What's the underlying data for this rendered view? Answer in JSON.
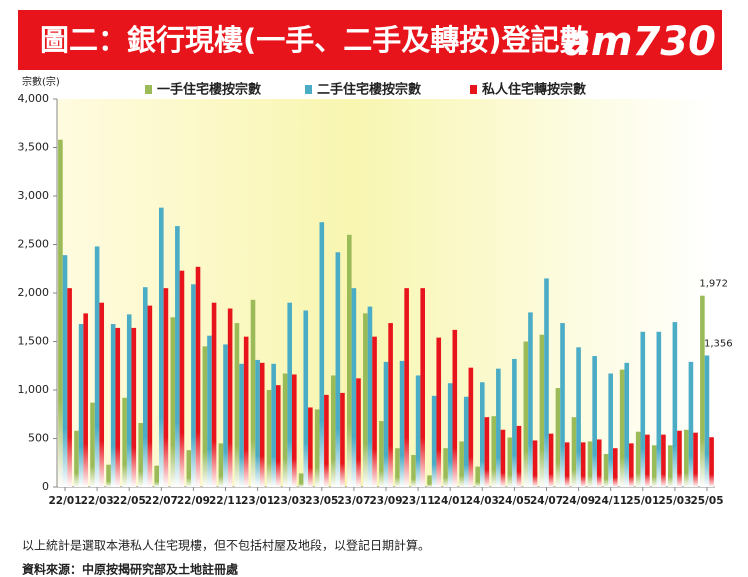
{
  "chart_data": {
    "type": "bar",
    "title": "圖二：銀行現樓(一手、二手及轉按)登記數",
    "logo": "am730",
    "y_axis_label": "宗數(宗)",
    "footnote": "以上統計是選取本港私人住宅現樓，但不包括村屋及地段，以登記日期計算。",
    "source": "資料來源：中原按揭研究部及土地註冊處",
    "categories": [
      "22/01",
      null,
      "22/03",
      null,
      "22/05",
      null,
      "22/07",
      null,
      "22/09",
      null,
      "22/11",
      null,
      "23/01",
      null,
      "23/03",
      null,
      "23/05",
      null,
      "23/07",
      null,
      "23/09",
      null,
      "23/11",
      null,
      "24/01",
      null,
      "24/03",
      null,
      "24/05",
      null,
      "24/07",
      null,
      "24/09",
      null,
      "24/11",
      null,
      "25/01",
      null,
      "25/03",
      null,
      "25/05"
    ],
    "series": [
      {
        "name": "一手住宅樓按宗數",
        "color": "#9bbb59",
        "values": [
          3580,
          580,
          870,
          230,
          920,
          660,
          220,
          1750,
          380,
          1450,
          450,
          1690,
          1930,
          1000,
          1170,
          140,
          800,
          1150,
          2600,
          1790,
          680,
          400,
          330,
          120,
          400,
          470,
          210,
          730,
          510,
          1500,
          1570,
          1020,
          720,
          470,
          340,
          1210,
          570,
          430,
          430,
          590,
          1972
        ],
        "value_labels": [
          null,
          null,
          null,
          null,
          null,
          null,
          null,
          null,
          null,
          null,
          null,
          null,
          null,
          null,
          null,
          null,
          null,
          null,
          null,
          null,
          null,
          null,
          null,
          null,
          null,
          null,
          null,
          null,
          null,
          null,
          null,
          null,
          null,
          null,
          null,
          null,
          null,
          null,
          null,
          null,
          "1,972"
        ]
      },
      {
        "name": "二手住宅樓按宗數",
        "color": "#4bacc6",
        "values": [
          2390,
          1680,
          2480,
          1680,
          1780,
          2060,
          2880,
          2690,
          2090,
          1560,
          1470,
          1270,
          1310,
          1270,
          1900,
          1820,
          2730,
          2420,
          2050,
          1860,
          1290,
          1300,
          1150,
          940,
          1070,
          930,
          1080,
          1220,
          1320,
          1800,
          2150,
          1690,
          1440,
          1350,
          1170,
          1280,
          1600,
          1600,
          1700,
          1290,
          1356
        ],
        "value_labels": [
          null,
          null,
          null,
          null,
          null,
          null,
          null,
          null,
          null,
          null,
          null,
          null,
          null,
          null,
          null,
          null,
          null,
          null,
          null,
          null,
          null,
          null,
          null,
          null,
          null,
          null,
          null,
          null,
          null,
          null,
          null,
          null,
          null,
          null,
          null,
          null,
          null,
          null,
          null,
          null,
          "1,356"
        ]
      },
      {
        "name": "私人住宅轉按宗數",
        "color": "#e8141c",
        "values": [
          2050,
          1790,
          1900,
          1640,
          1640,
          1870,
          2050,
          2230,
          2270,
          1900,
          1840,
          1550,
          1280,
          1050,
          1160,
          820,
          950,
          970,
          1120,
          1550,
          1690,
          2050,
          2050,
          1540,
          1620,
          1230,
          720,
          590,
          630,
          480,
          550,
          460,
          460,
          490,
          400,
          450,
          540,
          540,
          580,
          560,
          513
        ]
      }
    ],
    "ylim": [
      0,
      4000
    ],
    "yticks": [
      0,
      500,
      {
        "value": 1000,
        "label": "1,000"
      },
      {
        "value": 1500,
        "label": "1,500"
      },
      {
        "value": 2000,
        "label": "2,000"
      },
      {
        "value": 2500,
        "label": "2,500"
      },
      {
        "value": 3000,
        "label": "3,000"
      },
      {
        "value": 3500,
        "label": "3,500"
      },
      {
        "value": 4000,
        "label": "4,000"
      }
    ],
    "grid": false
  }
}
